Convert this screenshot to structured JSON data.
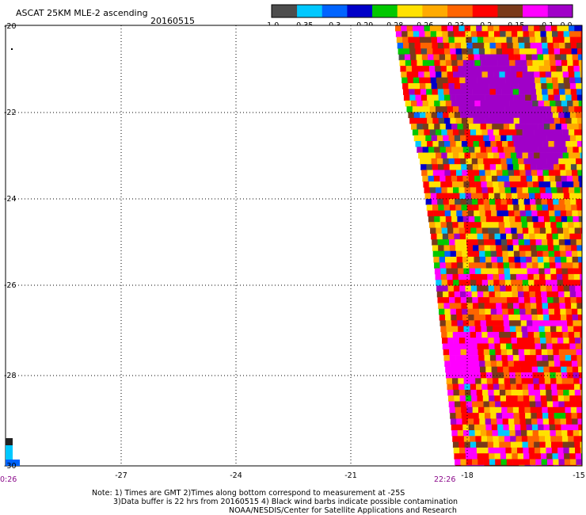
{
  "header": {
    "title": "ASCAT 25KM MLE-2 ascending",
    "date": "20160515"
  },
  "colorbar": {
    "labels": [
      "-1.0",
      "-0.35",
      "-0.3",
      "-0.29",
      "-0.28",
      "-0.26",
      "-0.23",
      "-0.2",
      "-0.15",
      "-0.1",
      "0.0"
    ],
    "colors": [
      "#4d4d4d",
      "#00c8ff",
      "#0064ff",
      "#0000c8",
      "#00c800",
      "#ffe100",
      "#ffaa00",
      "#ff6400",
      "#ff0000",
      "#7a3a1a",
      "#ff00ff",
      "#a000c8"
    ]
  },
  "map": {
    "lon_labels": [
      "-27",
      "-24",
      "-21",
      "-18",
      "-15"
    ],
    "lat_labels": [
      "-20",
      "-22",
      "-24",
      "-26",
      "-28",
      "-30"
    ],
    "lon_range": [
      -30,
      -15
    ],
    "lat_range": [
      -30,
      -20
    ],
    "grid": "dotted"
  },
  "times": {
    "left": "0:26",
    "right": "22:26"
  },
  "notes": {
    "line1": "Note: 1) Times are GMT 2)Times along bottom correspond to measurement at -25S",
    "line2": "3)Data buffer is 22 hrs from 20160515 4) Black wind barbs indicate possible contamination",
    "line3": "NOAA/NESDIS/Center for Satellite Applications and Research"
  }
}
